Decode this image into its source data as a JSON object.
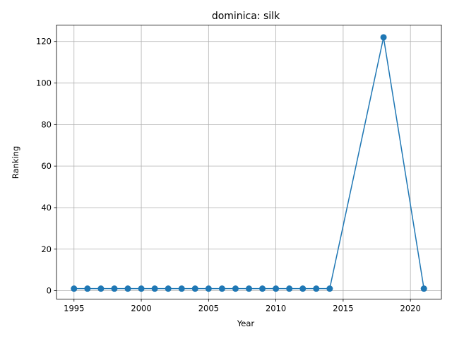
{
  "chart_data": {
    "type": "line",
    "title": "dominica: silk",
    "xlabel": "Year",
    "ylabel": "Ranking",
    "xlim": [
      1993.7,
      2022.3
    ],
    "ylim": [
      -4.05,
      127.9
    ],
    "xticks": [
      1995,
      2000,
      2005,
      2010,
      2015,
      2020
    ],
    "yticks": [
      0,
      20,
      40,
      60,
      80,
      100,
      120
    ],
    "grid": true,
    "series": [
      {
        "color": "#1f77b4",
        "marker": "circle",
        "x": [
          1995,
          1996,
          1997,
          1998,
          1999,
          2000,
          2001,
          2002,
          2003,
          2004,
          2005,
          2006,
          2007,
          2008,
          2009,
          2010,
          2011,
          2012,
          2013,
          2014,
          2018,
          2021
        ],
        "values": [
          1,
          1,
          1,
          1,
          1,
          1,
          1,
          1,
          1,
          1,
          1,
          1,
          1,
          1,
          1,
          1,
          1,
          1,
          1,
          1,
          122,
          1
        ]
      }
    ]
  }
}
